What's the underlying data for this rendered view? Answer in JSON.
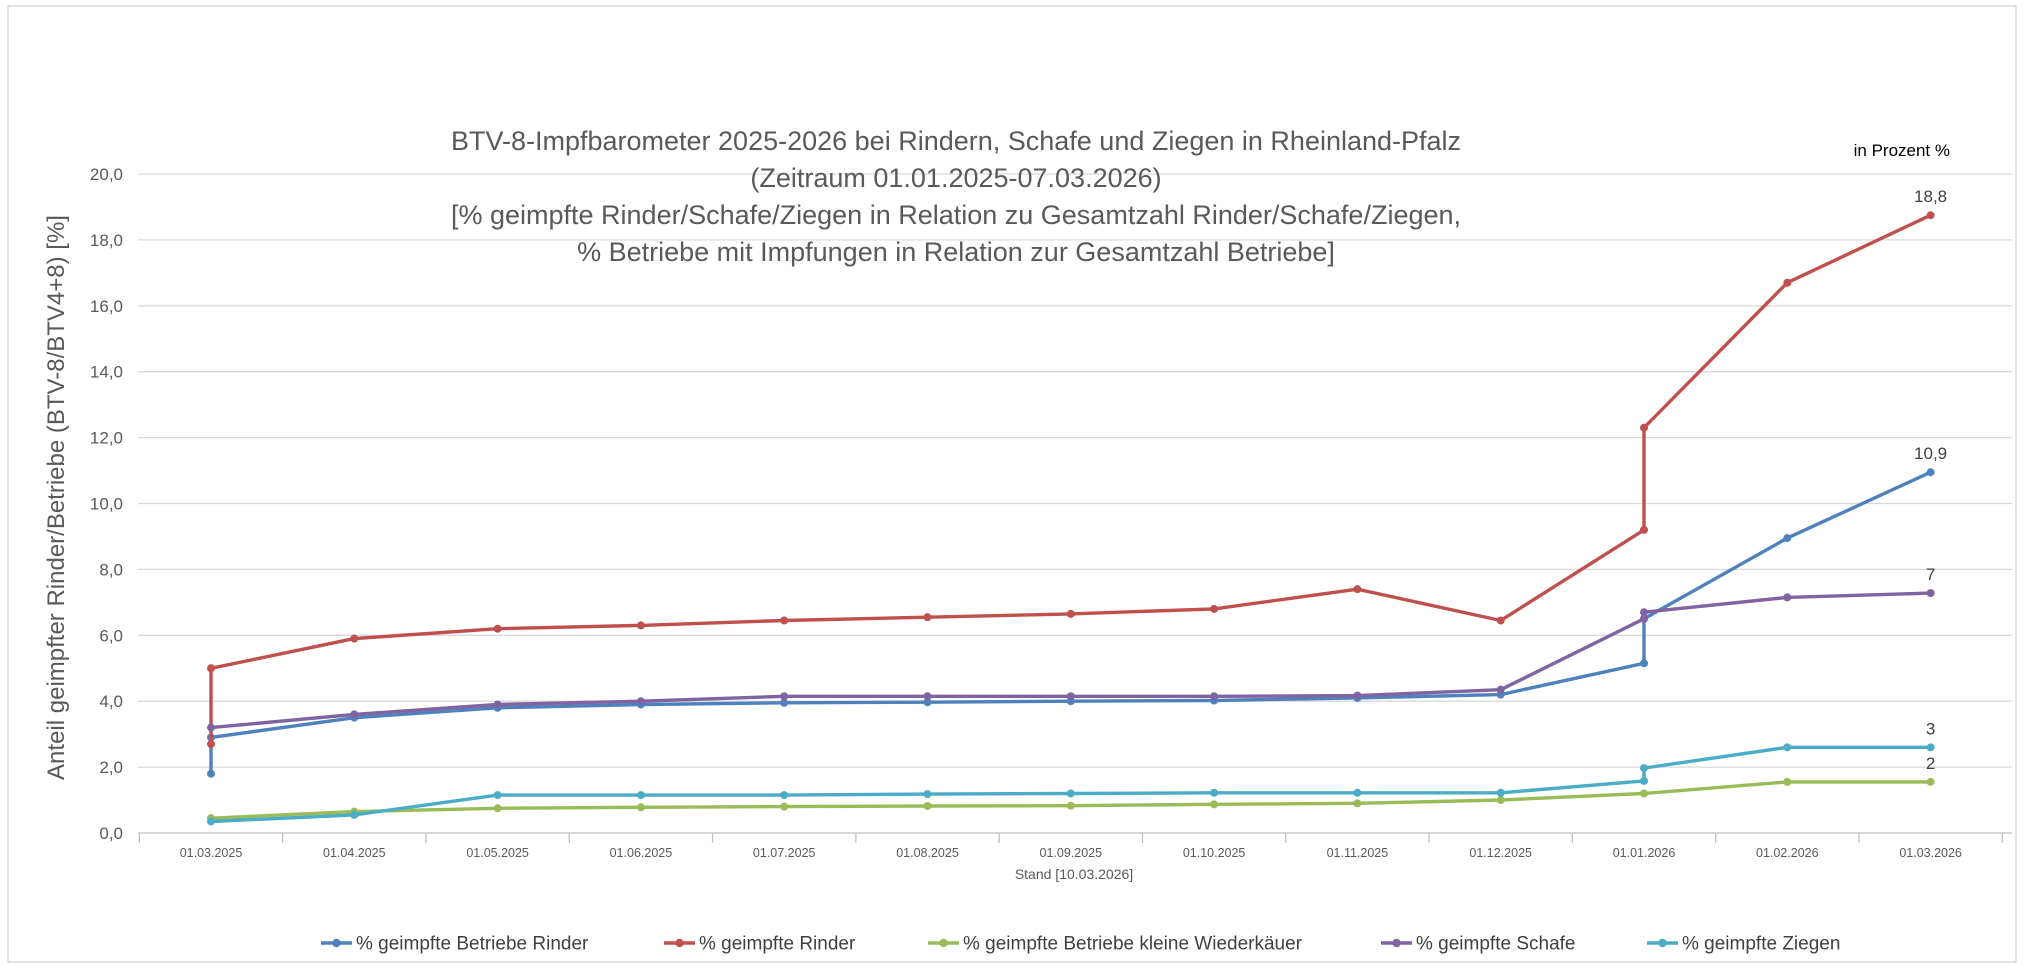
{
  "chart_data": {
    "type": "line",
    "title_lines": [
      "BTV-8-Impfbarometer 2025-2026 bei Rindern, Schafe und Ziegen in Rheinland-Pfalz",
      "(Zeitraum 01.01.2025-07.03.2026)",
      "[% geimpfte Rinder/Schafe/Ziegen in Relation zu Gesamtzahl Rinder/Schafe/Ziegen,",
      "% Betriebe mit Impfungen in Relation zur Gesamtzahl Betriebe]"
    ],
    "unit_note": "in Prozent %",
    "xlabel": "Stand [10.03.2026]",
    "ylabel": "Anteil geimpfter Rinder/Betriebe (BTV-8/BTV4+8) [%]",
    "ylim": [
      0,
      20
    ],
    "ytick_labels": [
      "0,0",
      "2,0",
      "4,0",
      "6,0",
      "8,0",
      "10,0",
      "12,0",
      "14,0",
      "16,0",
      "18,0",
      "20,0"
    ],
    "categories": [
      "01.03.2025",
      "01.04.2025",
      "01.05.2025",
      "01.06.2025",
      "01.07.2025",
      "01.08.2025",
      "01.09.2025",
      "01.10.2025",
      "01.11.2025",
      "01.12.2025",
      "01.01.2026",
      "01.02.2026",
      "01.03.2026"
    ],
    "grid": "horizontal",
    "legend_position": "bottom",
    "series": [
      {
        "name": "% geimpfte Betriebe Rinder",
        "color": "#4F81BD",
        "points": [
          [
            0,
            1.8
          ],
          [
            0,
            2.9
          ],
          [
            1,
            3.5
          ],
          [
            2,
            3.8
          ],
          [
            3,
            3.9
          ],
          [
            4,
            3.95
          ],
          [
            5,
            3.97
          ],
          [
            6,
            4.0
          ],
          [
            7,
            4.02
          ],
          [
            8,
            4.1
          ],
          [
            9,
            4.2
          ],
          [
            10,
            5.15
          ],
          [
            10,
            6.5
          ],
          [
            11,
            8.95
          ],
          [
            12,
            10.95
          ]
        ],
        "end_label": "10,9"
      },
      {
        "name": "% geimpfte Rinder",
        "color": "#C0504D",
        "points": [
          [
            0,
            2.7
          ],
          [
            0,
            5.0
          ],
          [
            1,
            5.9
          ],
          [
            2,
            6.2
          ],
          [
            3,
            6.3
          ],
          [
            4,
            6.45
          ],
          [
            5,
            6.55
          ],
          [
            6,
            6.65
          ],
          [
            7,
            6.8
          ],
          [
            8,
            7.4
          ],
          [
            9,
            6.45
          ],
          [
            10,
            9.2
          ],
          [
            10,
            12.3
          ],
          [
            11,
            16.7
          ],
          [
            12,
            18.75
          ]
        ],
        "end_label": "18,8"
      },
      {
        "name": "% geimpfte Betriebe kleine Wiederkäuer",
        "color": "#9BBB59",
        "points": [
          [
            0,
            0.45
          ],
          [
            1,
            0.65
          ],
          [
            2,
            0.75
          ],
          [
            3,
            0.78
          ],
          [
            4,
            0.8
          ],
          [
            5,
            0.82
          ],
          [
            6,
            0.83
          ],
          [
            7,
            0.87
          ],
          [
            8,
            0.9
          ],
          [
            9,
            1.0
          ],
          [
            10,
            1.2
          ],
          [
            11,
            1.55
          ],
          [
            12,
            1.55
          ]
        ],
        "end_label": "2"
      },
      {
        "name": "% geimpfte Schafe",
        "color": "#8064A2",
        "points": [
          [
            0,
            3.2
          ],
          [
            1,
            3.6
          ],
          [
            2,
            3.9
          ],
          [
            3,
            4.0
          ],
          [
            4,
            4.15
          ],
          [
            5,
            4.15
          ],
          [
            6,
            4.15
          ],
          [
            7,
            4.15
          ],
          [
            8,
            4.17
          ],
          [
            9,
            4.35
          ],
          [
            10,
            6.5
          ],
          [
            10,
            6.7
          ],
          [
            11,
            7.15
          ],
          [
            12,
            7.28
          ]
        ],
        "end_label": "7"
      },
      {
        "name": "% geimpfte Ziegen",
        "color": "#4BACC6",
        "points": [
          [
            0,
            0.35
          ],
          [
            1,
            0.55
          ],
          [
            2,
            1.15
          ],
          [
            3,
            1.15
          ],
          [
            4,
            1.15
          ],
          [
            5,
            1.18
          ],
          [
            6,
            1.2
          ],
          [
            7,
            1.22
          ],
          [
            8,
            1.22
          ],
          [
            9,
            1.22
          ],
          [
            10,
            1.58
          ],
          [
            10,
            1.97
          ],
          [
            11,
            2.6
          ],
          [
            12,
            2.6
          ]
        ],
        "end_label": "3"
      }
    ]
  }
}
